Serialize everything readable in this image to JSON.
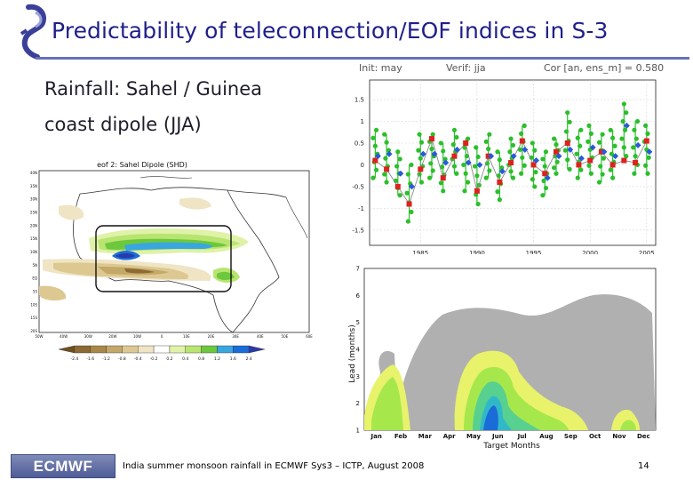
{
  "slide": {
    "title": "Predictability of teleconnection/EOF indices in S-3",
    "subtitle_line1": "Rainfall: Sahel / Guinea",
    "subtitle_line2": "coast dipole (JJA)",
    "footer_text": "India summer monsoon rainfall in ECMWF Sys3 – ICTP, August 2008",
    "page_number": "14",
    "logo_text": "ECMWF"
  },
  "map_panel": {
    "title": "eof 2: Sahel Dipole (SHD)",
    "lat_labels": [
      "40N",
      "35N",
      "30N",
      "25N",
      "20N",
      "15N",
      "10N",
      "5N",
      "EQ",
      "5S",
      "10S",
      "15S",
      "20S"
    ],
    "lon_labels": [
      "50W",
      "40W",
      "30W",
      "20W",
      "10W",
      "0",
      "10E",
      "20E",
      "30E",
      "40E",
      "50E",
      "60E"
    ],
    "colorbar_labels": [
      "-2.4",
      "-1.6",
      "-1.2",
      "-0.8",
      "-0.4",
      "-0.2",
      "0.2",
      "0.4",
      "0.8",
      "1.2",
      "1.6",
      "2.4"
    ],
    "colorbar_colors": [
      "#6e4f1e",
      "#8c6a32",
      "#a88848",
      "#c4a868",
      "#dcc890",
      "#efe4c4",
      "#ffffff",
      "#dff2a8",
      "#b8e470",
      "#6cc83c",
      "#3aa6e0",
      "#1a6cd8",
      "#2a3aa8"
    ]
  },
  "chart_data": [
    {
      "type": "scatter",
      "title": "Init: may   Verif: jja   Cor [an, ens_m] = 0.580",
      "title_parts": {
        "init": "Init: may",
        "verif": "Verif: jja",
        "cor": "Cor [an, ens_m] = 0.580"
      },
      "x_ticks": [
        1985,
        1990,
        1995,
        2000,
        2005
      ],
      "y_ticks": [
        1.5,
        1,
        0.5,
        0,
        -0.5,
        -1,
        -1.5
      ],
      "y_tick_labels": [
        "1.5",
        "1",
        "0.5",
        "0",
        "-0.5",
        "-1",
        "-1.5"
      ],
      "xlim": [
        1980.5,
        2005.8
      ],
      "ylim": [
        -1.85,
        1.95
      ],
      "years": [
        1981,
        1982,
        1983,
        1984,
        1985,
        1986,
        1987,
        1988,
        1989,
        1990,
        1991,
        1992,
        1993,
        1994,
        1995,
        1996,
        1997,
        1998,
        1999,
        2000,
        2001,
        2002,
        2003,
        2004,
        2005
      ],
      "observed": [
        0.1,
        -0.1,
        -0.5,
        -0.9,
        -0.1,
        0.6,
        -0.3,
        0.2,
        0.5,
        -0.6,
        0.2,
        -0.4,
        0.05,
        0.55,
        0.0,
        -0.2,
        0.3,
        0.5,
        0.0,
        0.1,
        0.3,
        0.0,
        0.1,
        0.05,
        0.55
      ],
      "ensemble_mean": [
        0.2,
        0.25,
        -0.2,
        -0.5,
        0.25,
        0.25,
        0.05,
        0.35,
        0.05,
        0.0,
        0.2,
        -0.15,
        0.2,
        0.35,
        0.1,
        -0.3,
        0.2,
        0.35,
        0.15,
        0.4,
        0.3,
        0.2,
        0.9,
        0.45,
        0.3
      ],
      "member_spread_min": [
        -0.3,
        -0.4,
        -0.7,
        -1.3,
        -0.4,
        -0.3,
        -0.6,
        -0.2,
        -0.6,
        -0.9,
        -0.3,
        -0.8,
        -0.3,
        -0.2,
        -0.5,
        -0.7,
        -0.2,
        -0.1,
        -0.3,
        -0.2,
        -0.4,
        -0.3,
        0.2,
        -0.2,
        -0.2
      ],
      "member_spread_max": [
        0.8,
        0.7,
        0.3,
        0.0,
        0.7,
        0.7,
        0.5,
        0.8,
        0.6,
        0.4,
        0.7,
        0.3,
        0.6,
        0.9,
        0.5,
        0.3,
        0.6,
        1.2,
        0.8,
        0.9,
        0.7,
        0.8,
        1.4,
        1.0,
        0.9
      ],
      "series_colors": {
        "observed": "#e02020",
        "ensemble_mean": "#2a5ad8",
        "members": "#2bbf2b",
        "line": "#8a8a8a"
      }
    },
    {
      "type": "heatmap",
      "xlabel": "Target Months",
      "ylabel": "Lead (months)",
      "x_labels": [
        "Jan",
        "Feb",
        "Mar",
        "Apr",
        "May",
        "Jun",
        "Jul",
        "Aug",
        "Sep",
        "Oct",
        "Nov",
        "Dec"
      ],
      "y_labels": [
        "1",
        "2",
        "3",
        "4",
        "5",
        "6",
        "7"
      ],
      "ylim": [
        1,
        7
      ]
    }
  ]
}
